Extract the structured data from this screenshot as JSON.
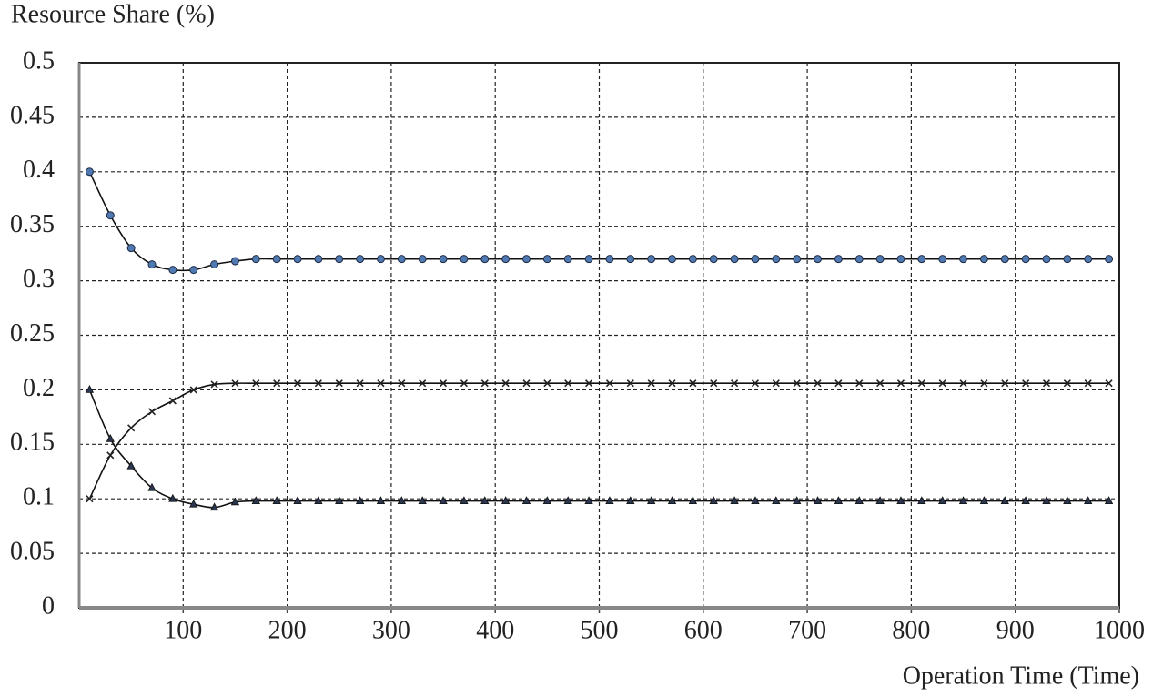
{
  "chart_data": {
    "type": "line",
    "y_label": "Resource Share (%)",
    "x_label": "Operation Time (Time)",
    "x": [
      10,
      30,
      50,
      70,
      90,
      110,
      130,
      150,
      170,
      190,
      210,
      230,
      250,
      270,
      290,
      310,
      330,
      350,
      370,
      390,
      410,
      430,
      450,
      470,
      490,
      510,
      530,
      550,
      570,
      590,
      610,
      630,
      650,
      670,
      690,
      710,
      730,
      750,
      770,
      790,
      810,
      830,
      850,
      870,
      890,
      910,
      930,
      950,
      970,
      990
    ],
    "series": [
      {
        "color": "#111111",
        "marker": "circle",
        "marker_color": "#4f79b0",
        "values": [
          0.4,
          0.36,
          0.33,
          0.315,
          0.31,
          0.31,
          0.315,
          0.318,
          0.32,
          0.32,
          0.32,
          0.32,
          0.32,
          0.32,
          0.32,
          0.32,
          0.32,
          0.32,
          0.32,
          0.32,
          0.32,
          0.32,
          0.32,
          0.32,
          0.32,
          0.32,
          0.32,
          0.32,
          0.32,
          0.32,
          0.32,
          0.32,
          0.32,
          0.32,
          0.32,
          0.32,
          0.32,
          0.32,
          0.32,
          0.32,
          0.32,
          0.32,
          0.32,
          0.32,
          0.32,
          0.32,
          0.32,
          0.32,
          0.32,
          0.32
        ]
      },
      {
        "color": "#111111",
        "marker": "x",
        "marker_color": "#222222",
        "values": [
          0.1,
          0.14,
          0.165,
          0.18,
          0.19,
          0.2,
          0.205,
          0.206,
          0.206,
          0.206,
          0.206,
          0.206,
          0.206,
          0.206,
          0.206,
          0.206,
          0.206,
          0.206,
          0.206,
          0.206,
          0.206,
          0.206,
          0.206,
          0.206,
          0.206,
          0.206,
          0.206,
          0.206,
          0.206,
          0.206,
          0.206,
          0.206,
          0.206,
          0.206,
          0.206,
          0.206,
          0.206,
          0.206,
          0.206,
          0.206,
          0.206,
          0.206,
          0.206,
          0.206,
          0.206,
          0.206,
          0.206,
          0.206,
          0.206,
          0.206
        ]
      },
      {
        "color": "#111111",
        "marker": "triangle",
        "marker_color": "#2a3550",
        "values": [
          0.2,
          0.155,
          0.13,
          0.11,
          0.1,
          0.095,
          0.092,
          0.097,
          0.098,
          0.098,
          0.098,
          0.098,
          0.098,
          0.098,
          0.098,
          0.098,
          0.098,
          0.098,
          0.098,
          0.098,
          0.098,
          0.098,
          0.098,
          0.098,
          0.098,
          0.098,
          0.098,
          0.098,
          0.098,
          0.098,
          0.098,
          0.098,
          0.098,
          0.098,
          0.098,
          0.098,
          0.098,
          0.098,
          0.098,
          0.098,
          0.098,
          0.098,
          0.098,
          0.098,
          0.098,
          0.098,
          0.098,
          0.098,
          0.098,
          0.098
        ]
      }
    ],
    "xlim": [
      0,
      1000
    ],
    "xticks": [
      100,
      200,
      300,
      400,
      500,
      600,
      700,
      800,
      900,
      1000
    ],
    "ylim": [
      0,
      0.5
    ],
    "yticks": [
      0,
      0.05,
      0.1,
      0.15,
      0.2,
      0.25,
      0.3,
      0.35,
      0.4,
      0.45,
      0.5
    ],
    "grid": true
  }
}
